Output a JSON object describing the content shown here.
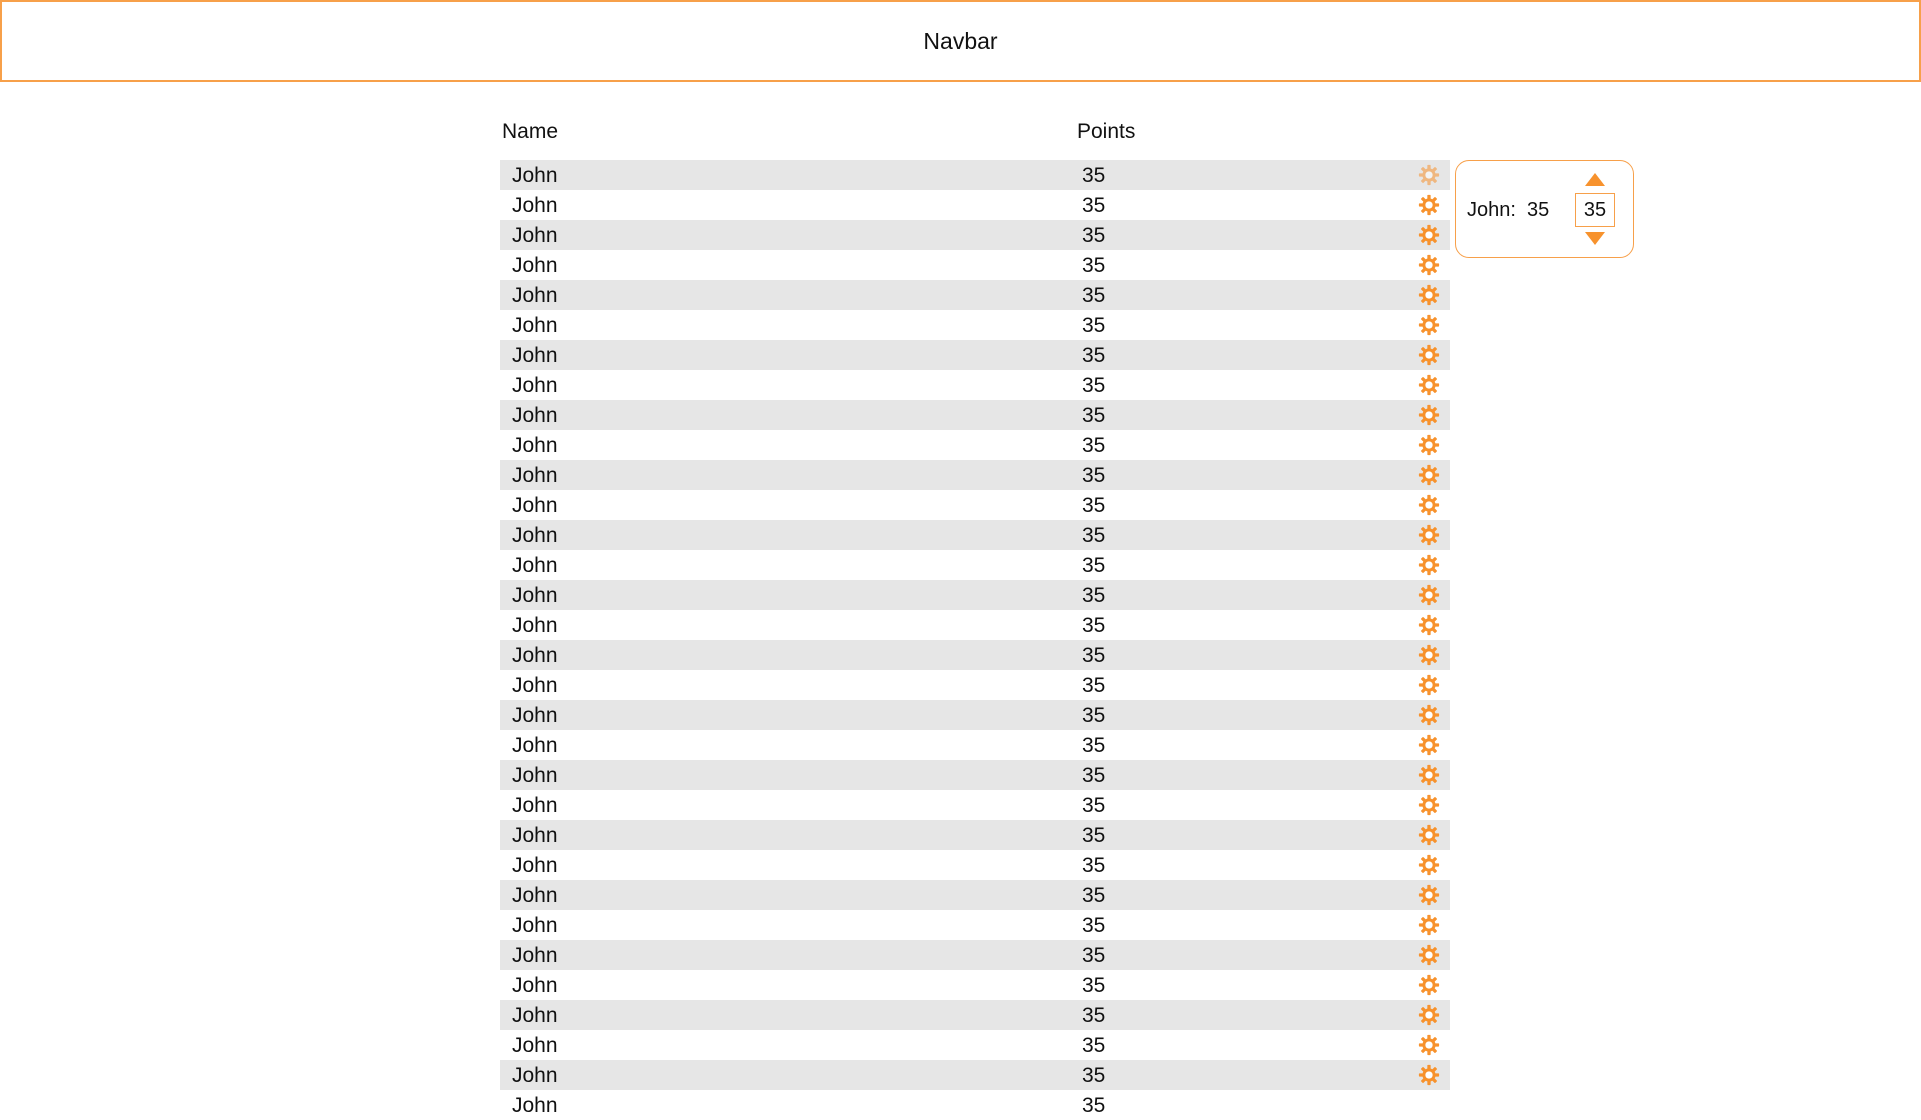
{
  "navbar": {
    "title": "Navbar"
  },
  "table": {
    "headers": {
      "name": "Name",
      "points": "Points"
    },
    "rows": [
      {
        "name": "John",
        "points": "35"
      },
      {
        "name": "John",
        "points": "35"
      },
      {
        "name": "John",
        "points": "35"
      },
      {
        "name": "John",
        "points": "35"
      },
      {
        "name": "John",
        "points": "35"
      },
      {
        "name": "John",
        "points": "35"
      },
      {
        "name": "John",
        "points": "35"
      },
      {
        "name": "John",
        "points": "35"
      },
      {
        "name": "John",
        "points": "35"
      },
      {
        "name": "John",
        "points": "35"
      },
      {
        "name": "John",
        "points": "35"
      },
      {
        "name": "John",
        "points": "35"
      },
      {
        "name": "John",
        "points": "35"
      },
      {
        "name": "John",
        "points": "35"
      },
      {
        "name": "John",
        "points": "35"
      },
      {
        "name": "John",
        "points": "35"
      },
      {
        "name": "John",
        "points": "35"
      },
      {
        "name": "John",
        "points": "35"
      },
      {
        "name": "John",
        "points": "35"
      },
      {
        "name": "John",
        "points": "35"
      },
      {
        "name": "John",
        "points": "35"
      },
      {
        "name": "John",
        "points": "35"
      },
      {
        "name": "John",
        "points": "35"
      },
      {
        "name": "John",
        "points": "35"
      },
      {
        "name": "John",
        "points": "35"
      },
      {
        "name": "John",
        "points": "35"
      },
      {
        "name": "John",
        "points": "35"
      },
      {
        "name": "John",
        "points": "35"
      },
      {
        "name": "John",
        "points": "35"
      },
      {
        "name": "John",
        "points": "35"
      },
      {
        "name": "John",
        "points": "35"
      },
      {
        "name": "John",
        "points": "35"
      }
    ],
    "row_icon": "gear-icon",
    "active_row_index": 0
  },
  "popover": {
    "label": "John:",
    "value": "35",
    "stepper_value": "35",
    "up_icon": "triangle-up-icon",
    "down_icon": "triangle-down-icon"
  },
  "colors": {
    "accent": "#f7922d",
    "border_accent": "#f7a04a",
    "row_shade": "#e6e6e6"
  }
}
